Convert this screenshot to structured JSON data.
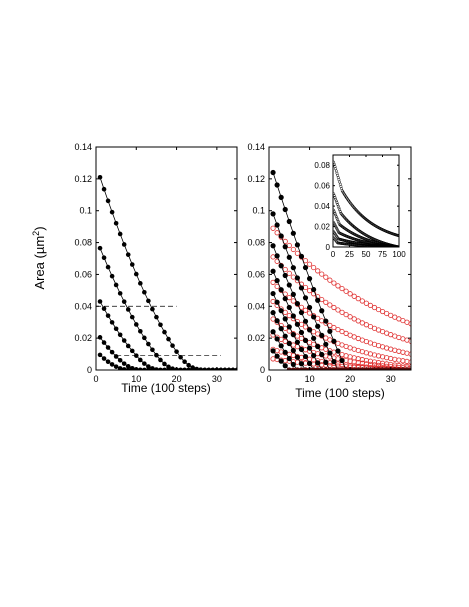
{
  "chart_data": [
    {
      "type": "line",
      "panel": "left",
      "xlabel": "Time (100 steps)",
      "ylabel_prefix": "Area (",
      "ylabel_unit": "µm",
      "ylabel_power": "2",
      "ylabel_suffix": ")",
      "xlim": [
        0,
        35
      ],
      "ylim": [
        0,
        0.14
      ],
      "xticks": [
        0,
        10,
        20,
        30
      ],
      "yticks": [
        0,
        0.02,
        0.04,
        0.06,
        0.08,
        0.1,
        0.12,
        0.14
      ],
      "xtick_labels": [
        "0",
        "10",
        "20",
        "30"
      ],
      "ytick_labels": [
        "0",
        "0.02",
        "0.04",
        "0.06",
        "0.08",
        "0.1",
        "0.12",
        "0.14"
      ],
      "grid": false,
      "reference_lines": [
        {
          "y": 0.04,
          "x_range": [
            0,
            20
          ],
          "style": "dashed"
        },
        {
          "y": 0.009,
          "x_range": [
            5,
            31
          ],
          "style": "dashed"
        }
      ],
      "series": [
        {
          "style": "filled",
          "points": [
            [
              1,
              0.121
            ],
            [
              2,
              0.1135
            ],
            [
              3,
              0.1062
            ],
            [
              4,
              0.0991
            ],
            [
              5,
              0.0921
            ],
            [
              6,
              0.0854
            ],
            [
              7,
              0.0788
            ],
            [
              8,
              0.0724
            ],
            [
              9,
              0.0662
            ],
            [
              10,
              0.0602
            ],
            [
              11,
              0.0544
            ],
            [
              12,
              0.0488
            ],
            [
              13,
              0.0434
            ],
            [
              14,
              0.0382
            ],
            [
              15,
              0.0332
            ],
            [
              16,
              0.0284
            ],
            [
              17,
              0.0238
            ],
            [
              18,
              0.0194
            ],
            [
              19,
              0.0153
            ],
            [
              20,
              0.0115
            ],
            [
              21,
              0.008
            ],
            [
              22,
              0.0052
            ],
            [
              23,
              0.003
            ],
            [
              24,
              0.0015
            ],
            [
              25,
              0.0006
            ],
            [
              26,
              0.0002
            ],
            [
              27,
              0
            ],
            [
              28,
              0
            ],
            [
              29,
              0
            ],
            [
              30,
              0
            ],
            [
              31,
              0
            ],
            [
              32,
              0
            ],
            [
              33,
              0
            ],
            [
              34,
              0
            ],
            [
              35,
              0
            ]
          ]
        },
        {
          "style": "filled",
          "points": [
            [
              1,
              0.0765
            ],
            [
              2,
              0.0705
            ],
            [
              3,
              0.0646
            ],
            [
              4,
              0.0589
            ],
            [
              5,
              0.0534
            ],
            [
              6,
              0.0481
            ],
            [
              7,
              0.0429
            ],
            [
              8,
              0.038
            ],
            [
              9,
              0.0332
            ],
            [
              10,
              0.0286
            ],
            [
              11,
              0.0243
            ],
            [
              12,
              0.0202
            ],
            [
              13,
              0.0163
            ],
            [
              14,
              0.0127
            ],
            [
              15,
              0.0093
            ],
            [
              16,
              0.0063
            ],
            [
              17,
              0.0038
            ],
            [
              18,
              0.002
            ],
            [
              19,
              0.0008
            ],
            [
              20,
              0.0002
            ],
            [
              21,
              0
            ],
            [
              22,
              0
            ],
            [
              23,
              0
            ],
            [
              24,
              0
            ],
            [
              25,
              0
            ],
            [
              26,
              0
            ],
            [
              27,
              0
            ],
            [
              28,
              0
            ],
            [
              29,
              0
            ],
            [
              30,
              0
            ],
            [
              31,
              0
            ],
            [
              32,
              0
            ],
            [
              33,
              0
            ],
            [
              34,
              0
            ],
            [
              35,
              0
            ]
          ]
        },
        {
          "style": "filled",
          "points": [
            [
              1,
              0.043
            ],
            [
              2,
              0.0385
            ],
            [
              3,
              0.0341
            ],
            [
              4,
              0.0299
            ],
            [
              5,
              0.0259
            ],
            [
              6,
              0.0221
            ],
            [
              7,
              0.0185
            ],
            [
              8,
              0.0151
            ],
            [
              9,
              0.012
            ],
            [
              10,
              0.009
            ],
            [
              11,
              0.0063
            ],
            [
              12,
              0.004
            ],
            [
              13,
              0.0022
            ],
            [
              14,
              0.001
            ],
            [
              15,
              0.0003
            ],
            [
              16,
              0
            ],
            [
              17,
              0
            ],
            [
              18,
              0
            ],
            [
              19,
              0
            ],
            [
              20,
              0
            ],
            [
              21,
              0
            ],
            [
              22,
              0
            ],
            [
              23,
              0
            ],
            [
              24,
              0
            ],
            [
              25,
              0
            ],
            [
              26,
              0
            ],
            [
              27,
              0
            ],
            [
              28,
              0
            ],
            [
              29,
              0
            ],
            [
              30,
              0
            ],
            [
              31,
              0
            ],
            [
              32,
              0
            ],
            [
              33,
              0
            ],
            [
              34,
              0
            ],
            [
              35,
              0
            ]
          ]
        },
        {
          "style": "filled",
          "points": [
            [
              1,
              0.0205
            ],
            [
              2,
              0.0172
            ],
            [
              3,
              0.0141
            ],
            [
              4,
              0.0112
            ],
            [
              5,
              0.0085
            ],
            [
              6,
              0.0061
            ],
            [
              7,
              0.004
            ],
            [
              8,
              0.0023
            ],
            [
              9,
              0.0011
            ],
            [
              10,
              0.0004
            ],
            [
              11,
              0.0001
            ],
            [
              12,
              0
            ],
            [
              13,
              0
            ],
            [
              14,
              0
            ],
            [
              15,
              0
            ],
            [
              16,
              0
            ],
            [
              17,
              0
            ],
            [
              18,
              0
            ],
            [
              19,
              0
            ],
            [
              20,
              0
            ],
            [
              21,
              0
            ],
            [
              22,
              0
            ],
            [
              23,
              0
            ],
            [
              24,
              0
            ],
            [
              25,
              0
            ],
            [
              26,
              0
            ],
            [
              27,
              0
            ],
            [
              28,
              0
            ],
            [
              29,
              0
            ],
            [
              30,
              0
            ],
            [
              31,
              0
            ],
            [
              32,
              0
            ],
            [
              33,
              0
            ],
            [
              34,
              0
            ],
            [
              35,
              0
            ]
          ]
        },
        {
          "style": "filled",
          "points": [
            [
              1,
              0.0095
            ],
            [
              2,
              0.0072
            ],
            [
              3,
              0.0052
            ],
            [
              4,
              0.0035
            ],
            [
              5,
              0.0021
            ],
            [
              6,
              0.001
            ],
            [
              7,
              0.0004
            ],
            [
              8,
              0.0001
            ],
            [
              9,
              0
            ],
            [
              10,
              0
            ],
            [
              11,
              0
            ],
            [
              12,
              0
            ],
            [
              13,
              0
            ],
            [
              14,
              0
            ],
            [
              15,
              0
            ],
            [
              16,
              0
            ],
            [
              17,
              0
            ],
            [
              18,
              0
            ],
            [
              19,
              0
            ],
            [
              20,
              0
            ],
            [
              21,
              0
            ],
            [
              22,
              0
            ],
            [
              23,
              0
            ],
            [
              24,
              0
            ],
            [
              25,
              0
            ],
            [
              26,
              0
            ],
            [
              27,
              0
            ],
            [
              28,
              0
            ],
            [
              29,
              0
            ],
            [
              30,
              0
            ],
            [
              31,
              0
            ],
            [
              32,
              0
            ],
            [
              33,
              0
            ],
            [
              34,
              0
            ],
            [
              35,
              0
            ]
          ]
        }
      ]
    },
    {
      "type": "scatter",
      "panel": "right",
      "xlabel": "Time (100 steps)",
      "xlim": [
        0,
        35
      ],
      "ylim": [
        0,
        0.14
      ],
      "xticks": [
        0,
        10,
        20,
        30
      ],
      "yticks": [
        0,
        0.02,
        0.04,
        0.06,
        0.08,
        0.1,
        0.12,
        0.14
      ],
      "xtick_labels": [
        "0",
        "10",
        "20",
        "30"
      ],
      "ytick_labels": [
        "0",
        "0.02",
        "0.04",
        "0.06",
        "0.08",
        "0.1",
        "0.12",
        "0.14"
      ],
      "grid": false,
      "series_black": [
        {
          "style": "filled",
          "start": 0.124,
          "end_x": 19
        },
        {
          "style": "filled",
          "start": 0.098,
          "end_x": 17
        },
        {
          "style": "filled",
          "start": 0.078,
          "end_x": 15
        },
        {
          "style": "filled",
          "start": 0.062,
          "end_x": 13
        },
        {
          "style": "filled",
          "start": 0.048,
          "end_x": 11
        },
        {
          "style": "filled",
          "start": 0.036,
          "end_x": 9
        },
        {
          "style": "filled",
          "start": 0.024,
          "end_x": 7
        },
        {
          "style": "filled",
          "start": 0.012,
          "end_x": 5
        }
      ],
      "series_red": [
        {
          "style": "open",
          "color": "#e03030",
          "start": 0.089,
          "end": 0.029
        },
        {
          "style": "open",
          "color": "#e03030",
          "start": 0.071,
          "end": 0.018
        },
        {
          "style": "open",
          "color": "#e03030",
          "start": 0.055,
          "end": 0.01
        },
        {
          "style": "open",
          "color": "#e03030",
          "start": 0.043,
          "end": 0.005
        },
        {
          "style": "open",
          "color": "#e03030",
          "start": 0.032,
          "end": 0.002
        },
        {
          "style": "open",
          "color": "#e03030",
          "start": 0.022,
          "end": 0.001
        },
        {
          "style": "open",
          "color": "#e03030",
          "start": 0.013,
          "end": 0.0
        },
        {
          "style": "open",
          "color": "#e03030",
          "start": 0.007,
          "end": 0.0
        }
      ],
      "inset": {
        "type": "scatter",
        "xlim": [
          0,
          100
        ],
        "ylim": [
          0,
          0.09
        ],
        "xticks": [
          0,
          25,
          50,
          75,
          100
        ],
        "yticks": [
          0,
          0.02,
          0.04,
          0.06,
          0.08
        ],
        "xtick_labels": [
          "0",
          "25",
          "50",
          "75",
          "100"
        ],
        "ytick_labels": [
          "0",
          "0.02",
          "0.04",
          "0.06",
          "0.08"
        ],
        "series": [
          {
            "style": "open",
            "start": 0.083,
            "knee_x": 14,
            "knee_y": 0.055,
            "end": 0.011
          },
          {
            "style": "open",
            "start": 0.052,
            "knee_x": 12,
            "knee_y": 0.033,
            "end": 0.0
          },
          {
            "style": "open",
            "start": 0.036,
            "knee_x": 10,
            "knee_y": 0.022,
            "end": 0.0
          },
          {
            "style": "open",
            "start": 0.024,
            "knee_x": 9,
            "knee_y": 0.014,
            "end": 0.0
          },
          {
            "style": "open",
            "start": 0.015,
            "knee_x": 8,
            "knee_y": 0.008,
            "end": 0.0
          },
          {
            "style": "open",
            "start": 0.009,
            "knee_x": 7,
            "knee_y": 0.004,
            "end": 0.0
          }
        ]
      }
    }
  ]
}
